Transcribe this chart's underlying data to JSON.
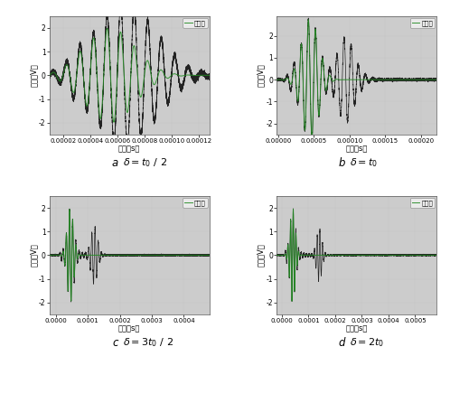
{
  "panels": [
    {
      "label": "a",
      "caption_math": "$\\delta=t_0/2$",
      "xlim": [
        1e-05,
        0.000128
      ],
      "xticks": [
        2e-05,
        4e-05,
        6e-05,
        8e-05,
        0.0001,
        0.00012
      ],
      "xticklabels": [
        "0.00002",
        "0.00004",
        "0.00006",
        "0.00008",
        "0.00010",
        "0.00012"
      ],
      "ylim": [
        -2.5,
        2.5
      ],
      "yticks": [
        -2,
        -1,
        0,
        1,
        2
      ],
      "freq": 100000,
      "amp": 2.0,
      "t0": 5e-05,
      "delta_factor": 0.5
    },
    {
      "label": "b",
      "caption_math": "$\\delta=t_0$",
      "xlim": [
        -2e-06,
        0.000222
      ],
      "xticks": [
        0.0,
        5e-05,
        0.0001,
        0.00015,
        0.0002
      ],
      "xticklabels": [
        "0.00000",
        "0.00005",
        "0.00010",
        "0.00015",
        "0.00020"
      ],
      "ylim": [
        -2.5,
        2.9
      ],
      "yticks": [
        -2,
        -1,
        0,
        1,
        2
      ],
      "freq": 100000,
      "amp": 2.8,
      "t0": 5e-05,
      "delta_factor": 1.0
    },
    {
      "label": "c",
      "caption_math": "$\\delta=3t_0/2$",
      "xlim": [
        -2e-05,
        0.00048
      ],
      "xticks": [
        0.0,
        0.0001,
        0.0002,
        0.0003,
        0.0004
      ],
      "xticklabels": [
        "0.0000",
        "0.0001",
        "0.0002",
        "0.0003",
        "0.0004"
      ],
      "ylim": [
        -2.5,
        2.5
      ],
      "yticks": [
        -2,
        -1,
        0,
        1,
        2
      ],
      "freq": 100000,
      "amp": 2.0,
      "t0": 5e-05,
      "delta_factor": 1.5
    },
    {
      "label": "d",
      "caption_math": "$\\delta=2t_0$",
      "xlim": [
        -2e-05,
        0.00058
      ],
      "xticks": [
        0.0,
        0.0001,
        0.0002,
        0.0003,
        0.0004,
        0.0005
      ],
      "xticklabels": [
        "0.0000",
        "0.0001",
        "0.0002",
        "0.0003",
        "0.0004",
        "0.0005"
      ],
      "ylim": [
        -2.5,
        2.5
      ],
      "yticks": [
        -2,
        -1,
        0,
        1,
        2
      ],
      "freq": 100000,
      "amp": 2.0,
      "t0": 5e-05,
      "delta_factor": 2.0
    }
  ],
  "signal_color": "#1a1a1a",
  "incident_color": "#228B22",
  "xlabel": "时间（s）",
  "ylabel": "幅値（V）",
  "legend_label": "入射波",
  "bg_color": "#cccccc",
  "fig_bg": "#ffffff",
  "lw_signal": 0.5,
  "lw_incident": 0.7
}
